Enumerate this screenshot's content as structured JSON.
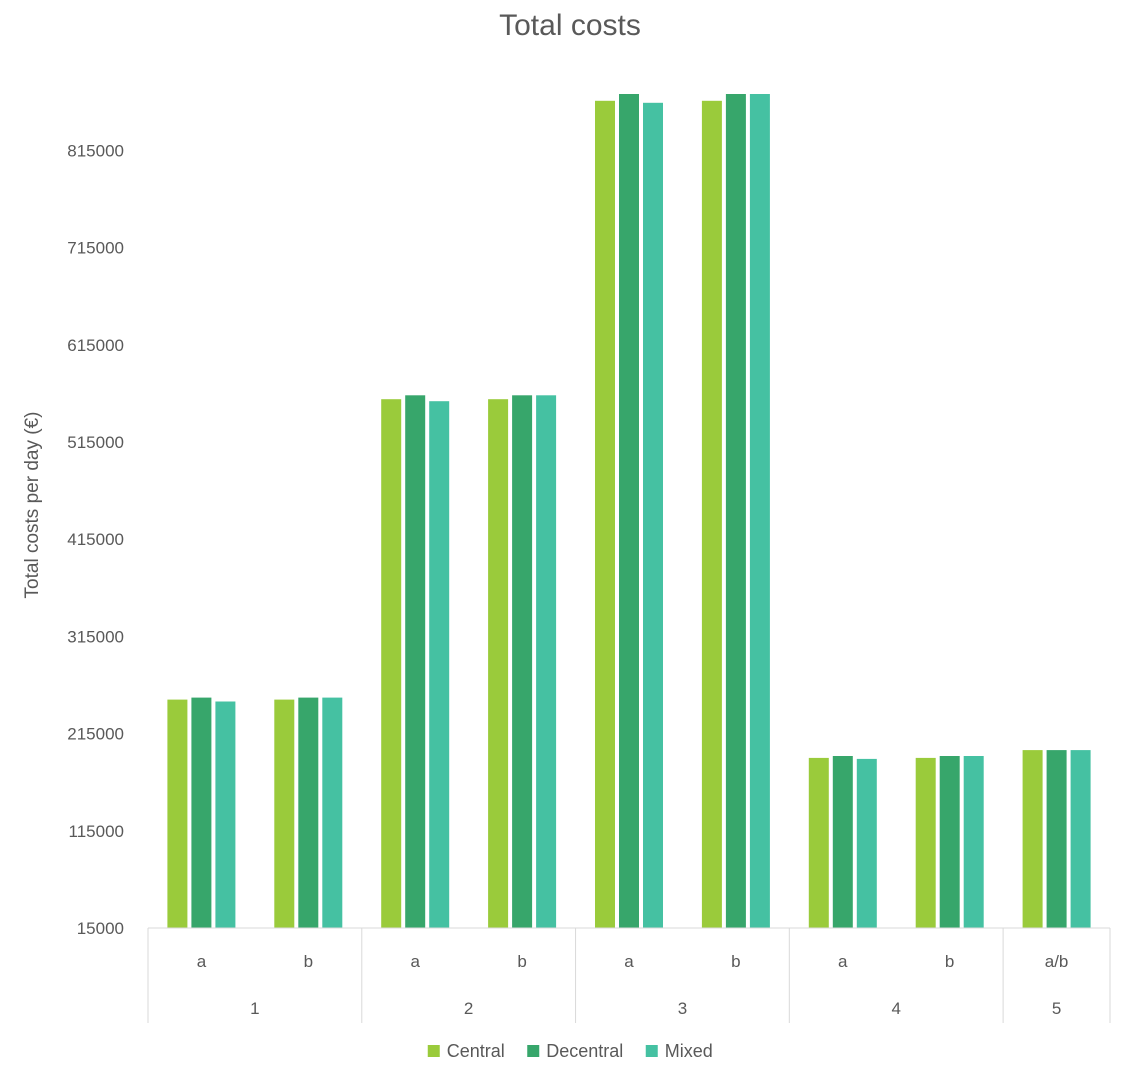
{
  "chart_data": {
    "type": "bar",
    "title": "Total costs",
    "ylabel": "Total costs per day (€)",
    "xlabel": "",
    "ylim": [
      15000,
      880000
    ],
    "yticks": [
      15000,
      115000,
      215000,
      315000,
      415000,
      515000,
      615000,
      715000,
      815000
    ],
    "grid": false,
    "legend_position": "bottom",
    "groups": [
      {
        "label": "1",
        "subcategories": [
          "a",
          "b"
        ]
      },
      {
        "label": "2",
        "subcategories": [
          "a",
          "b"
        ]
      },
      {
        "label": "3",
        "subcategories": [
          "a",
          "b"
        ]
      },
      {
        "label": "4",
        "subcategories": [
          "a",
          "b"
        ]
      },
      {
        "label": "5",
        "subcategories": [
          "a/b"
        ]
      }
    ],
    "categories": [
      "1 a",
      "1 b",
      "2 a",
      "2 b",
      "3 a",
      "3 b",
      "4 a",
      "4 b",
      "5 a/b"
    ],
    "series": [
      {
        "name": "Central",
        "color": "#9acb3b",
        "values": [
          250000,
          250000,
          559000,
          559000,
          866000,
          866000,
          190000,
          190000,
          198000
        ]
      },
      {
        "name": "Decentral",
        "color": "#37a66b",
        "values": [
          252000,
          252000,
          563000,
          563000,
          873000,
          873000,
          192000,
          192000,
          198000
        ]
      },
      {
        "name": "Mixed",
        "color": "#45c1a2",
        "values": [
          248000,
          252000,
          557000,
          563000,
          864000,
          873000,
          189000,
          192000,
          198000
        ]
      }
    ]
  }
}
